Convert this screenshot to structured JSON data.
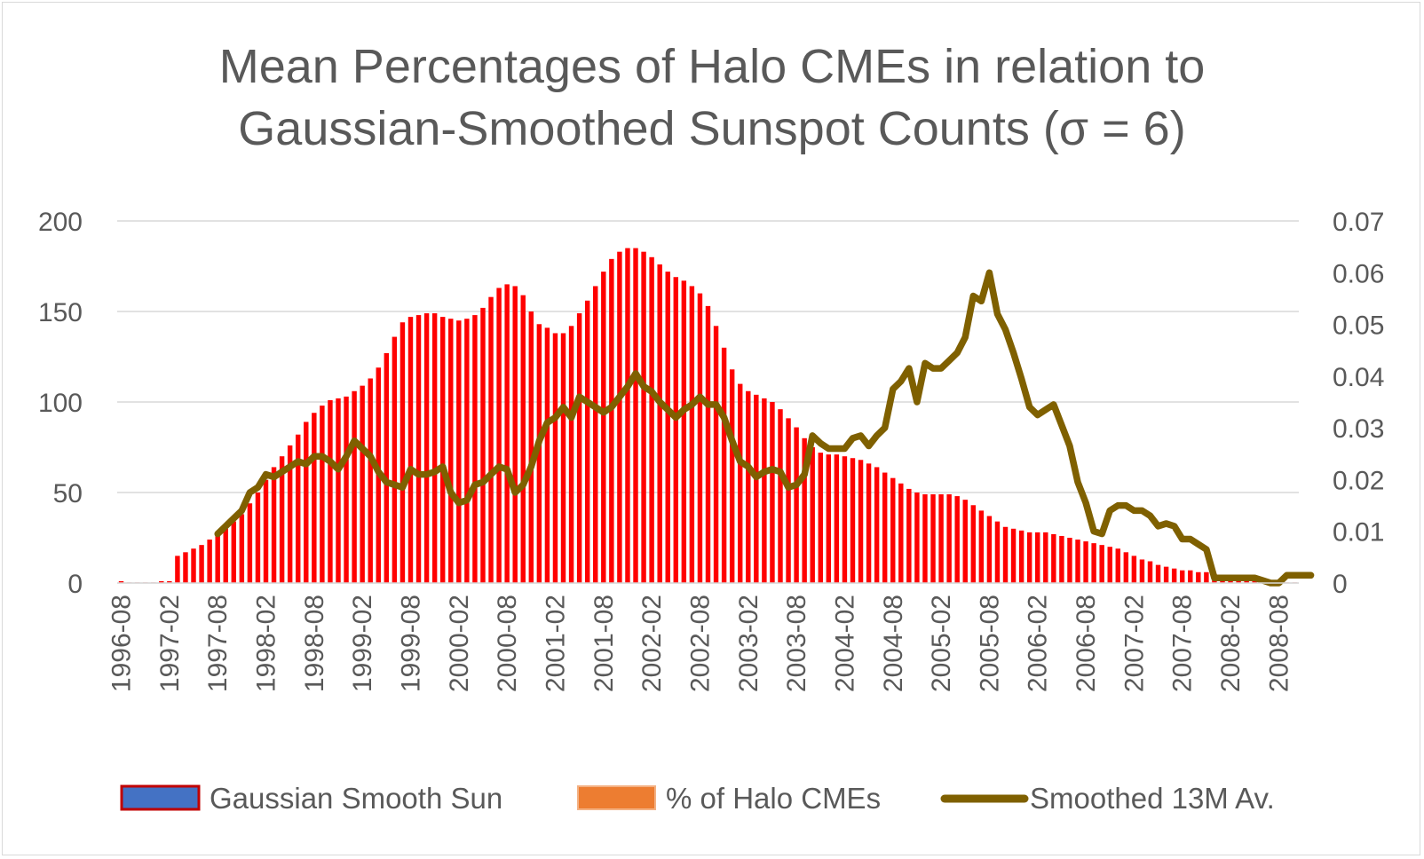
{
  "chart_data": {
    "type": "bar",
    "title_line1": "Mean Percentages of Halo CMEs in relation to",
    "title_line2": "Gaussian-Smoothed Sunspot Counts (σ = 6)",
    "xlabel": "",
    "ylabel": "",
    "grid": true,
    "legend_position": "bottom",
    "ylim": [
      0,
      200
    ],
    "y2lim": [
      0,
      0.07
    ],
    "y_ticks": [
      "0",
      "50",
      "100",
      "150",
      "200"
    ],
    "y2_ticks": [
      "0",
      "0.01",
      "0.02",
      "0.03",
      "0.04",
      "0.05",
      "0.06",
      "0.07"
    ],
    "x_tick_labels": [
      "1996-08",
      "1997-02",
      "1997-08",
      "1998-02",
      "1998-08",
      "1999-02",
      "1999-08",
      "2000-02",
      "2000-08",
      "2001-02",
      "2001-08",
      "2002-02",
      "2002-08",
      "2003-02",
      "2003-08",
      "2004-02",
      "2004-08",
      "2005-02",
      "2005-08",
      "2006-02",
      "2006-08",
      "2007-02",
      "2007-08",
      "2008-02",
      "2008-08"
    ],
    "series": [
      {
        "name": "Gaussian Smooth Sun",
        "axis": "left",
        "color": "#4472c4",
        "display_color": "#ff0000",
        "border_color": "#c00000",
        "values": [
          1,
          0,
          0,
          0,
          0,
          1,
          1,
          15,
          17,
          19,
          21,
          24,
          27,
          30,
          34,
          38,
          44,
          50,
          57,
          64,
          70,
          76,
          82,
          89,
          94,
          98,
          101,
          102,
          103,
          106,
          109,
          113,
          119,
          127,
          136,
          144,
          147,
          148,
          149,
          149,
          147,
          146,
          145,
          146,
          148,
          152,
          158,
          163,
          165,
          164,
          159,
          150,
          143,
          141,
          138,
          138,
          142,
          149,
          156,
          164,
          172,
          179,
          183,
          185,
          185,
          183,
          180,
          176,
          172,
          169,
          167,
          164,
          160,
          153,
          142,
          130,
          118,
          110,
          106,
          104,
          102,
          100,
          96,
          91,
          86,
          80,
          75,
          72,
          71,
          71,
          70,
          69,
          68,
          66,
          64,
          61,
          58,
          55,
          52,
          50,
          49,
          49,
          49,
          49,
          48,
          46,
          43,
          40,
          37,
          34,
          31,
          30,
          29,
          28,
          28,
          28,
          27,
          26,
          25,
          24,
          23,
          22,
          21,
          20,
          19,
          17,
          15,
          13,
          12,
          10,
          9,
          8,
          7,
          7,
          6,
          6,
          5,
          4,
          3,
          2,
          1,
          1,
          1,
          0,
          0,
          0,
          0
        ]
      },
      {
        "name": "% of Halo CMEs",
        "axis": "right",
        "color": "#ed7d31",
        "values": []
      },
      {
        "name": "Smoothed 13M Av.",
        "axis": "right",
        "type": "line",
        "color": "#7f6000",
        "start_index": 12,
        "values": [
          0.0095,
          0.011,
          0.0125,
          0.014,
          0.0175,
          0.0185,
          0.021,
          0.0205,
          0.0215,
          0.0225,
          0.0235,
          0.023,
          0.0245,
          0.0245,
          0.0235,
          0.022,
          0.0245,
          0.0275,
          0.026,
          0.0245,
          0.0215,
          0.0195,
          0.019,
          0.0185,
          0.022,
          0.021,
          0.021,
          0.0215,
          0.0225,
          0.0175,
          0.0155,
          0.016,
          0.019,
          0.0195,
          0.021,
          0.0225,
          0.022,
          0.0175,
          0.019,
          0.0225,
          0.0275,
          0.031,
          0.032,
          0.034,
          0.032,
          0.036,
          0.035,
          0.034,
          0.033,
          0.034,
          0.036,
          0.038,
          0.0405,
          0.038,
          0.037,
          0.035,
          0.0335,
          0.032,
          0.0335,
          0.0345,
          0.036,
          0.0345,
          0.0345,
          0.032,
          0.0275,
          0.0235,
          0.0225,
          0.0205,
          0.0215,
          0.022,
          0.0215,
          0.0185,
          0.019,
          0.021,
          0.0285,
          0.027,
          0.026,
          0.026,
          0.026,
          0.028,
          0.0285,
          0.0265,
          0.0285,
          0.03,
          0.0375,
          0.039,
          0.0415,
          0.035,
          0.0425,
          0.0415,
          0.0415,
          0.043,
          0.0445,
          0.0475,
          0.0555,
          0.0545,
          0.06,
          0.052,
          0.049,
          0.0445,
          0.0395,
          0.034,
          0.0325,
          0.0335,
          0.0345,
          0.0305,
          0.0265,
          0.0195,
          0.0155,
          0.01,
          0.0095,
          0.014,
          0.015,
          0.015,
          0.014,
          0.014,
          0.013,
          0.011,
          0.0115,
          0.011,
          0.0085,
          0.0085,
          0.0075,
          0.0065,
          0.001,
          0.001,
          0.001,
          0.001,
          0.001,
          0.001,
          0.0005,
          0.0,
          0.0,
          0.0015,
          0.0015,
          0.0015,
          0.0015
        ]
      }
    ]
  }
}
